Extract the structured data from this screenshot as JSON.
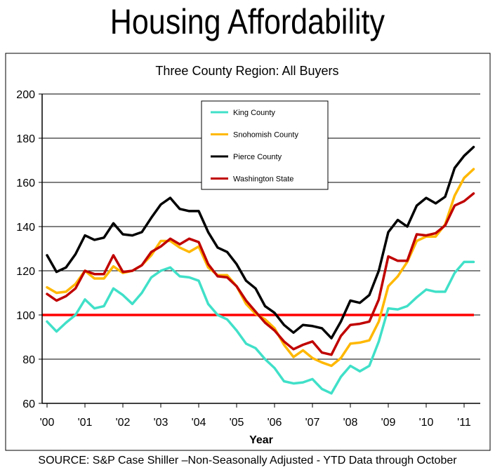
{
  "slide": {
    "title": "Housing Affordability",
    "source": "SOURCE:  S&P Case Shiller –Non-Seasonally Adjusted -  YTD Data through October"
  },
  "colors": {
    "king": "#40e0c8",
    "snohomish": "#ffb800",
    "pierce": "#000000",
    "washington": "#c00000",
    "reference": "#ff0000",
    "grid": "#000000"
  },
  "chart_data": {
    "type": "line",
    "title": "Three County Region: All Buyers",
    "xlabel": "Year",
    "ylabel": "",
    "ylim": [
      60,
      200
    ],
    "yticks": [
      60,
      80,
      100,
      120,
      140,
      160,
      180,
      200
    ],
    "xlim": [
      2000,
      2011.25
    ],
    "xticks": [
      {
        "value": 2000,
        "label": "'00"
      },
      {
        "value": 2001,
        "label": "'01"
      },
      {
        "value": 2002,
        "label": "'02"
      },
      {
        "value": 2003,
        "label": "'03"
      },
      {
        "value": 2004,
        "label": "'04"
      },
      {
        "value": 2005,
        "label": "'05"
      },
      {
        "value": 2006,
        "label": "'06"
      },
      {
        "value": 2007,
        "label": "'07"
      },
      {
        "value": 2008,
        "label": "'08"
      },
      {
        "value": 2009,
        "label": "'09"
      },
      {
        "value": 2010,
        "label": "'10"
      },
      {
        "value": 2011,
        "label": "'11"
      }
    ],
    "grid": "horizontal",
    "legend_position": "top-center",
    "reference_line": 100,
    "x": [
      2000.0,
      2000.25,
      2000.5,
      2000.75,
      2001.0,
      2001.25,
      2001.5,
      2001.75,
      2002.0,
      2002.25,
      2002.5,
      2002.75,
      2003.0,
      2003.25,
      2003.5,
      2003.75,
      2004.0,
      2004.25,
      2004.5,
      2004.75,
      2005.0,
      2005.25,
      2005.5,
      2005.75,
      2006.0,
      2006.25,
      2006.5,
      2006.75,
      2007.0,
      2007.25,
      2007.5,
      2007.75,
      2008.0,
      2008.25,
      2008.5,
      2008.75,
      2009.0,
      2009.25,
      2009.5,
      2009.75,
      2010.0,
      2010.25,
      2010.5,
      2010.75,
      2011.0,
      2011.25
    ],
    "series": [
      {
        "name": "King County",
        "color_key": "king",
        "values": [
          97,
          92.5,
          96.5,
          100,
          107,
          103,
          104,
          112,
          109,
          105,
          110,
          117,
          120,
          121.5,
          117.5,
          117,
          115.5,
          105,
          100,
          98,
          93,
          87,
          85,
          80,
          76,
          70,
          69,
          69.5,
          71,
          66.5,
          64.5,
          72,
          77,
          74.5,
          77,
          88,
          103,
          102.5,
          104,
          108,
          111.5,
          110.5,
          110.5,
          119,
          124,
          124
        ]
      },
      {
        "name": "Snohomish County",
        "color_key": "snohomish",
        "values": [
          112.5,
          110,
          110.5,
          114,
          120,
          116.5,
          116.5,
          122,
          119,
          120,
          122.5,
          127,
          133.5,
          133.5,
          130.5,
          128.5,
          131,
          121.5,
          118,
          118,
          113,
          105,
          100.5,
          98,
          94,
          86.5,
          81,
          84,
          80.5,
          78.5,
          77,
          80.5,
          87,
          87.5,
          88.5,
          97,
          113,
          117.5,
          124,
          133.5,
          135.5,
          135.5,
          141,
          154,
          162,
          166
        ]
      },
      {
        "name": "Pierce County",
        "color_key": "pierce",
        "values": [
          127,
          119.5,
          121.5,
          127.5,
          136,
          134,
          135,
          141.5,
          136.5,
          136,
          137.5,
          144,
          150,
          153,
          148,
          147,
          147,
          137.5,
          130.5,
          128.5,
          123,
          115.5,
          112,
          104,
          101,
          95.5,
          92,
          95.5,
          95,
          94,
          89.5,
          97,
          106.5,
          105.5,
          109,
          120,
          137.5,
          143,
          140,
          149.5,
          153,
          150.5,
          153.5,
          166.5,
          172,
          176
        ]
      },
      {
        "name": "Washington State",
        "color_key": "washington",
        "values": [
          109.5,
          106.5,
          108.5,
          112,
          120,
          118.5,
          118.5,
          127,
          119.5,
          120,
          122.5,
          128.5,
          131,
          134.5,
          132,
          134.5,
          133,
          123,
          117.5,
          117,
          113,
          106.5,
          101.5,
          96.5,
          93,
          88,
          84.5,
          86.5,
          88,
          83,
          82,
          90.5,
          95.5,
          96,
          97,
          107,
          126.5,
          124.5,
          124.5,
          136.5,
          136,
          137,
          140.5,
          149.5,
          151.5,
          155
        ]
      }
    ]
  }
}
